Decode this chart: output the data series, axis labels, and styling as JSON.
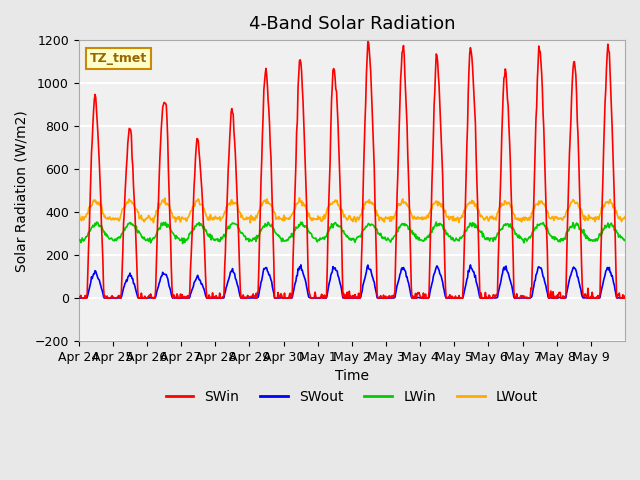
{
  "title": "4-Band Solar Radiation",
  "xlabel": "Time",
  "ylabel": "Solar Radiation (W/m2)",
  "ylim": [
    -200,
    1200
  ],
  "yticks": [
    -200,
    0,
    200,
    400,
    600,
    800,
    1000,
    1200
  ],
  "n_days": 16,
  "points_per_day": 48,
  "legend_entries": [
    "SWin",
    "SWout",
    "LWin",
    "LWout"
  ],
  "line_colors": [
    "#ff0000",
    "#0000ff",
    "#00cc00",
    "#ffaa00"
  ],
  "annotation_text": "TZ_tmet",
  "annotation_bg": "#ffffcc",
  "annotation_border": "#cc8800",
  "background_color": "#e8e8e8",
  "plot_bg": "#f0f0f0",
  "title_fontsize": 13,
  "label_fontsize": 10,
  "tick_fontsize": 9,
  "legend_fontsize": 10,
  "line_width": 1.2,
  "xtick_labels": [
    "Apr 24",
    "Apr 25",
    "Apr 26",
    "Apr 27",
    "Apr 28",
    "Apr 29",
    "Apr 30",
    "May 1",
    "May 2",
    "May 3",
    "May 4",
    "May 5",
    "May 6",
    "May 7",
    "May 8",
    "May 9"
  ],
  "SWin_peaks": [
    850,
    720,
    880,
    670,
    790,
    980,
    1000,
    995,
    1080,
    1060,
    1010,
    1060,
    970,
    1060,
    1000,
    1055
  ],
  "SWout_peaks": [
    110,
    100,
    110,
    90,
    115,
    130,
    130,
    130,
    130,
    130,
    130,
    130,
    130,
    130,
    130,
    130
  ],
  "LWin_base": 300,
  "LWout_base": 370
}
